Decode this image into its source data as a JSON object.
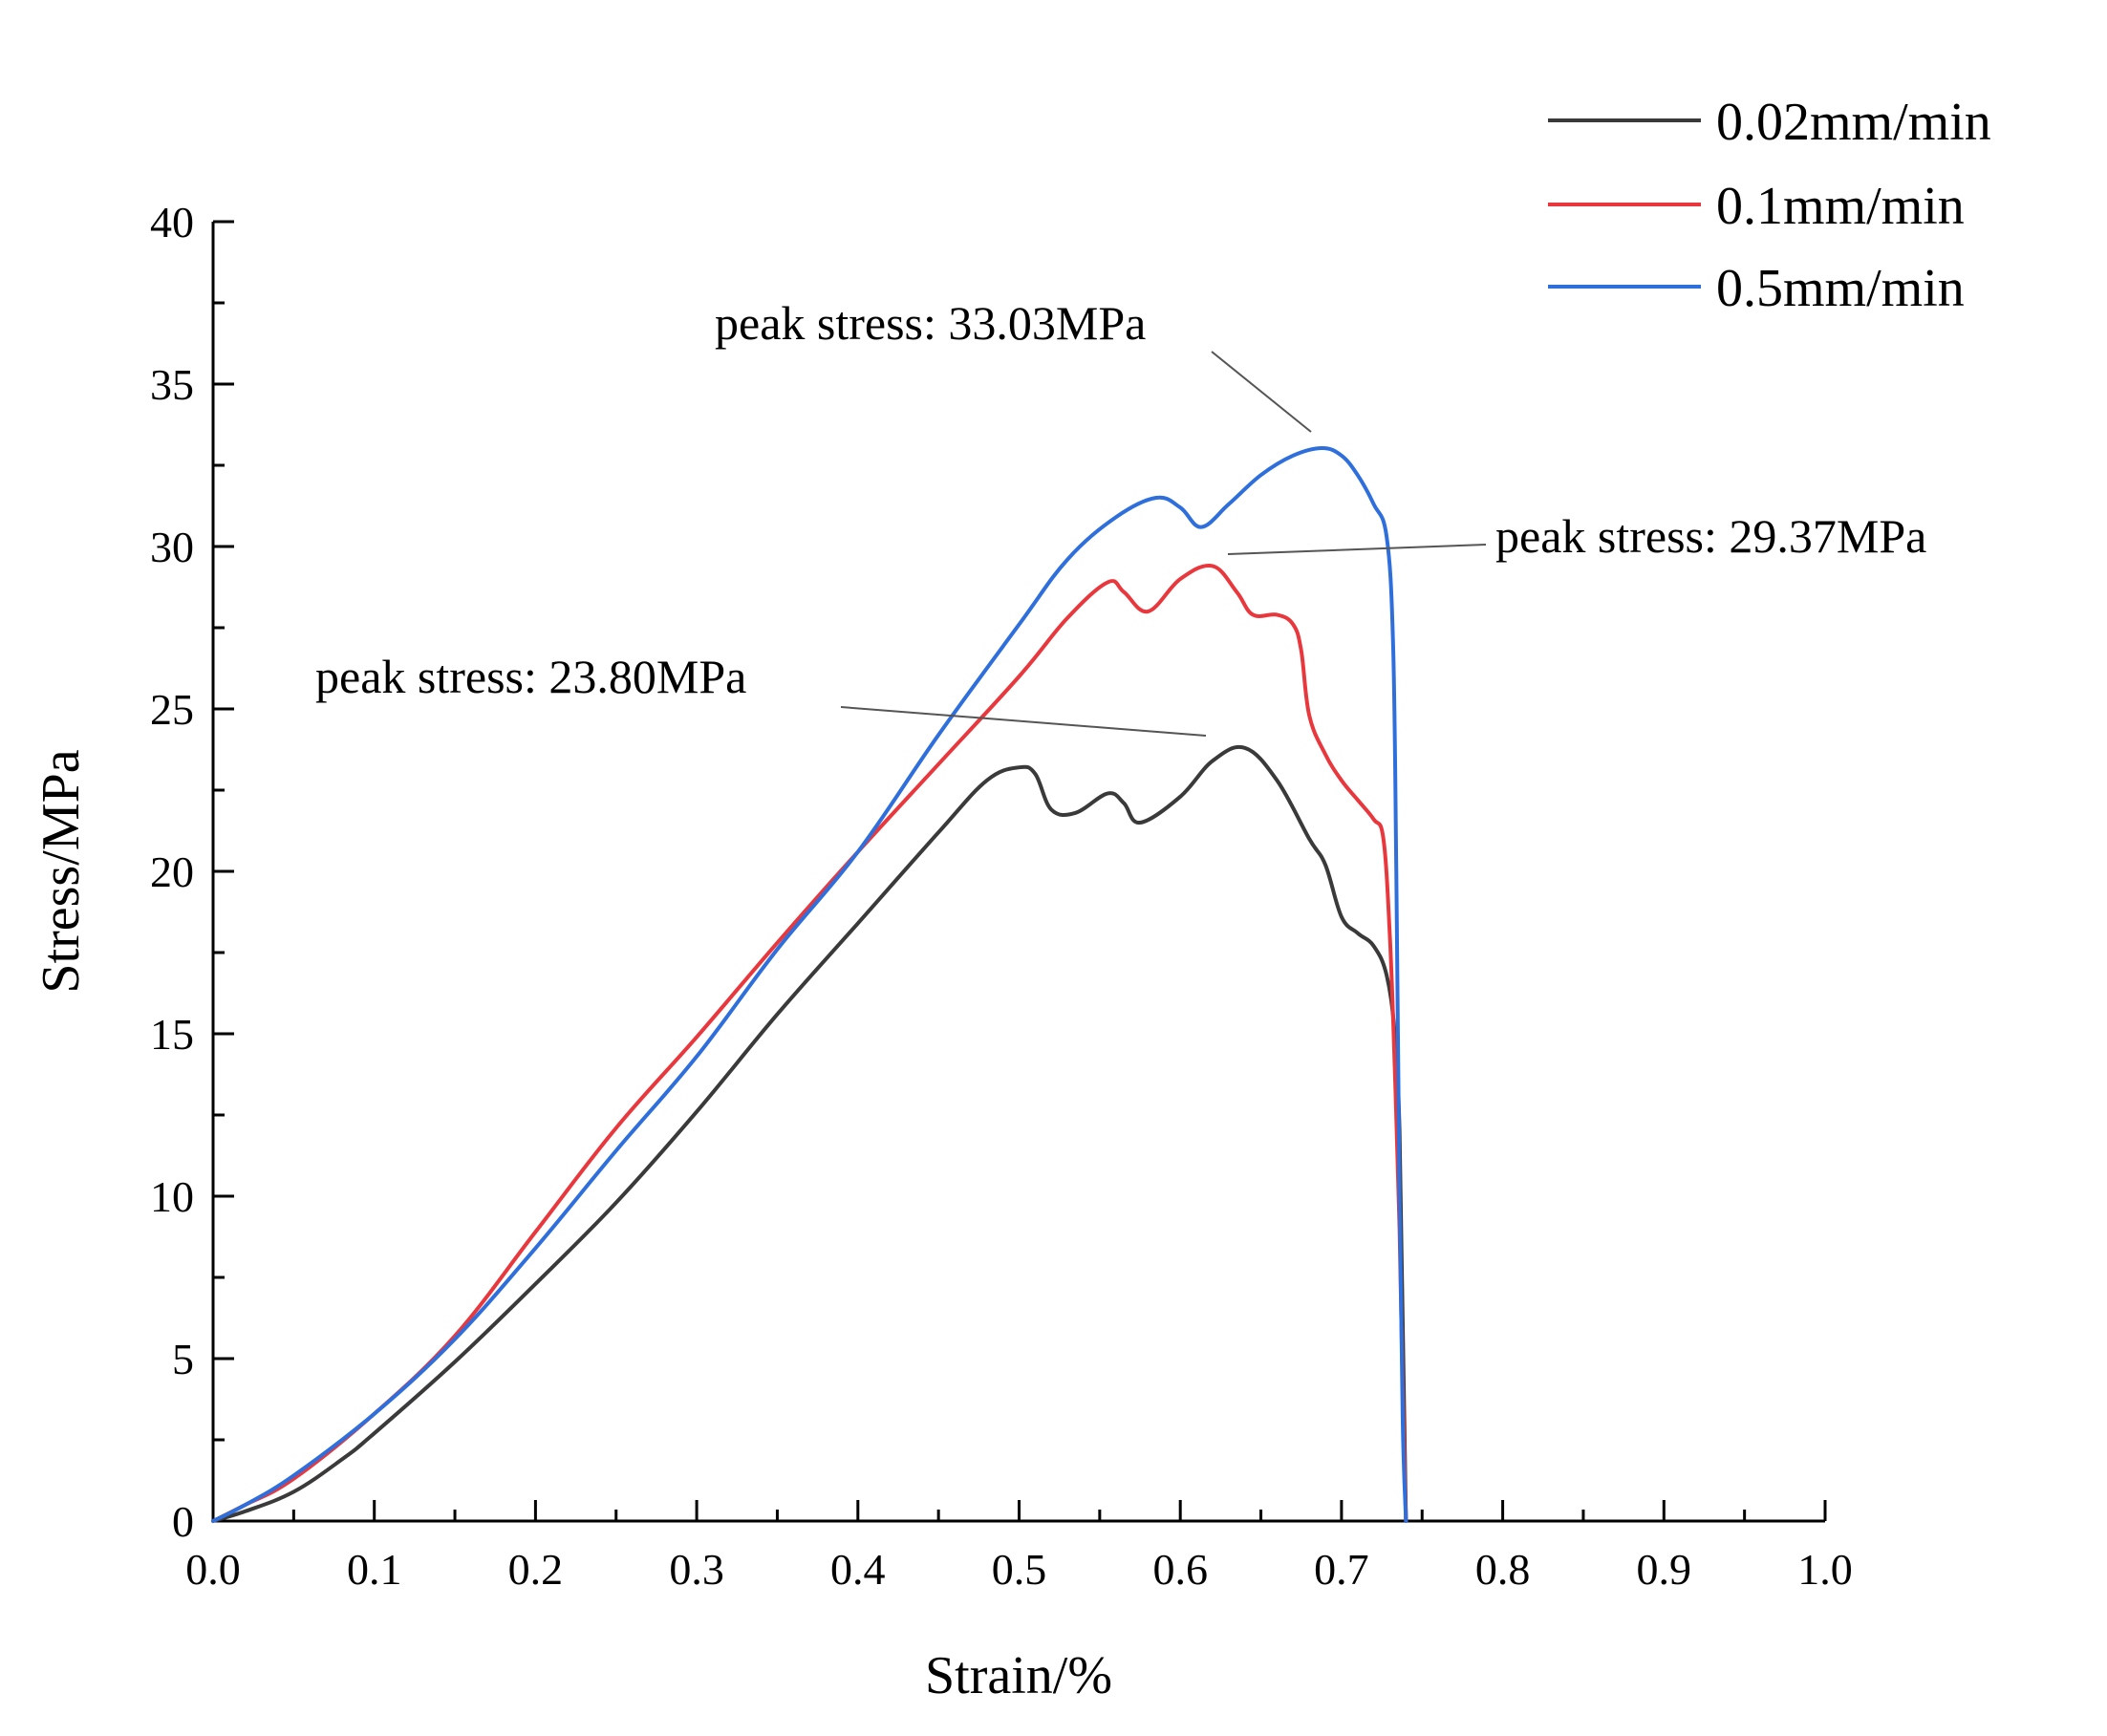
{
  "chart_data": {
    "type": "line",
    "title": "",
    "xlabel": "Strain/%",
    "ylabel": "Stress/MPa",
    "xlim": [
      0.0,
      1.0
    ],
    "ylim": [
      0,
      40
    ],
    "grid": false,
    "legend_position": "top-right",
    "x_ticks": [
      "0.0",
      "0.1",
      "0.2",
      "0.3",
      "0.4",
      "0.5",
      "0.6",
      "0.7",
      "0.8",
      "0.9",
      "1.0"
    ],
    "y_ticks": [
      "0",
      "5",
      "10",
      "15",
      "20",
      "25",
      "30",
      "35",
      "40"
    ],
    "series": [
      {
        "name": "0.02mm/min",
        "color": "#3a3a3a",
        "x": [
          0,
          0.02,
          0.05,
          0.08,
          0.1,
          0.15,
          0.2,
          0.25,
          0.3,
          0.35,
          0.4,
          0.45,
          0.48,
          0.5,
          0.51,
          0.52,
          0.535,
          0.555,
          0.565,
          0.575,
          0.6,
          0.62,
          0.64,
          0.66,
          0.68,
          0.69,
          0.7,
          0.71,
          0.72,
          0.728,
          0.733,
          0.736,
          0.738,
          0.74
        ],
        "y": [
          0,
          0.3,
          0.9,
          1.9,
          2.7,
          4.9,
          7.3,
          9.8,
          12.6,
          15.6,
          18.4,
          21.2,
          22.8,
          23.2,
          23.0,
          21.9,
          21.8,
          22.4,
          22.1,
          21.5,
          22.3,
          23.4,
          23.8,
          22.8,
          21.0,
          20.2,
          18.6,
          18.1,
          17.7,
          16.8,
          15.0,
          12.0,
          6.0,
          0
        ]
      },
      {
        "name": "0.1mm/min",
        "color": "#e8383d",
        "x": [
          0,
          0.02,
          0.05,
          0.1,
          0.15,
          0.2,
          0.25,
          0.3,
          0.35,
          0.4,
          0.45,
          0.5,
          0.53,
          0.555,
          0.565,
          0.58,
          0.6,
          0.62,
          0.635,
          0.645,
          0.66,
          0.67,
          0.675,
          0.68,
          0.69,
          0.7,
          0.71,
          0.72,
          0.726,
          0.73,
          0.733,
          0.736,
          0.738,
          0.74
        ],
        "y": [
          0,
          0.5,
          1.3,
          3.3,
          5.7,
          8.9,
          12.1,
          14.9,
          17.8,
          20.6,
          23.3,
          26.0,
          27.8,
          28.9,
          28.6,
          28.0,
          29.0,
          29.4,
          28.6,
          27.9,
          27.9,
          27.6,
          26.8,
          24.8,
          23.6,
          22.8,
          22.2,
          21.6,
          21.0,
          18.0,
          14.0,
          9.0,
          4.0,
          0
        ]
      },
      {
        "name": "0.5mm/min",
        "color": "#2f6fdc",
        "x": [
          0,
          0.02,
          0.05,
          0.1,
          0.15,
          0.2,
          0.25,
          0.3,
          0.35,
          0.4,
          0.45,
          0.5,
          0.53,
          0.56,
          0.585,
          0.6,
          0.613,
          0.63,
          0.65,
          0.67,
          0.688,
          0.7,
          0.71,
          0.72,
          0.728,
          0.732,
          0.734,
          0.736,
          0.738,
          0.74
        ],
        "y": [
          0,
          0.5,
          1.4,
          3.3,
          5.6,
          8.4,
          11.4,
          14.3,
          17.6,
          20.6,
          24.2,
          27.6,
          29.6,
          30.9,
          31.5,
          31.2,
          30.6,
          31.3,
          32.2,
          32.8,
          33.03,
          32.8,
          32.2,
          31.3,
          30.3,
          27.0,
          20.0,
          10.0,
          3.0,
          0
        ]
      }
    ],
    "annotations": [
      {
        "text": "peak stress: 23.80MPa",
        "x": 0.64,
        "y": 23.8,
        "color": "#000000"
      },
      {
        "text": "peak stress: 29.37MPa",
        "x": 0.62,
        "y": 29.37,
        "color": "#000000"
      },
      {
        "text": "peak stress: 33.03MPa",
        "x": 0.688,
        "y": 33.03,
        "color": "#000000"
      }
    ]
  }
}
